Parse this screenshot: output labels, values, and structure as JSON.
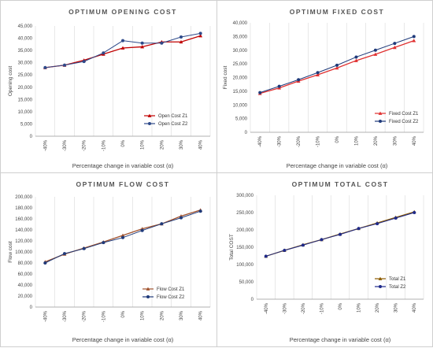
{
  "chart_data": [
    {
      "type": "line",
      "title": "OPTIMUM OPENING COST",
      "xlabel": "Percentage change in variable cost (α)",
      "ylabel": "Opening cost",
      "categories": [
        "-40%",
        "-30%",
        "-20%",
        "-10%",
        "0%",
        "10%",
        "20%",
        "30%",
        "40%"
      ],
      "ylim": [
        0,
        45000
      ],
      "yticks": [
        "0",
        "5,000",
        "10,000",
        "15,000",
        "20,000",
        "25,000",
        "30,000",
        "35,000",
        "40,000",
        "45,000"
      ],
      "grid": "vertical",
      "legend": "bottom-right",
      "series": [
        {
          "name": "Open Cost Z1",
          "color": "#c00000",
          "marker": "triangle",
          "values": [
            28000,
            29000,
            31000,
            33500,
            36000,
            36500,
            38500,
            38500,
            41000
          ]
        },
        {
          "name": "Open Cost Z2",
          "color": "#2e4a8a",
          "marker": "circle",
          "values": [
            28000,
            29000,
            30500,
            34000,
            39000,
            38000,
            38000,
            40500,
            42000
          ]
        }
      ]
    },
    {
      "type": "line",
      "title": "OPTIMUM FIXED COST",
      "xlabel": "Percentage change in variable cost (α)",
      "ylabel": "Fixed cost",
      "categories": [
        "-40%",
        "-30%",
        "-20%",
        "-10%",
        "0%",
        "10%",
        "20%",
        "30%",
        "40%"
      ],
      "ylim": [
        0,
        40000
      ],
      "yticks": [
        "0",
        "5,000",
        "10,000",
        "15,000",
        "20,000",
        "25,000",
        "30,000",
        "35,000",
        "40,000"
      ],
      "grid": "vertical",
      "legend": "bottom-right",
      "series": [
        {
          "name": "Fixed Cost Z1",
          "color": "#e03030",
          "marker": "triangle",
          "values": [
            14200,
            16200,
            18700,
            21000,
            23500,
            26200,
            28500,
            31000,
            33500
          ]
        },
        {
          "name": "Fixed Cost Z2",
          "color": "#1f3a7a",
          "marker": "circle",
          "values": [
            14500,
            16800,
            19200,
            21800,
            24500,
            27500,
            30000,
            32500,
            35000
          ]
        }
      ]
    },
    {
      "type": "line",
      "title": "OPTIMUM FLOW COST",
      "xlabel": "Percentage change in variable cost (α)",
      "ylabel": "Flow cost",
      "categories": [
        "-40%",
        "-30%",
        "-20%",
        "-10%",
        "0%",
        "10%",
        "20%",
        "30%",
        "40%"
      ],
      "ylim": [
        0,
        200000
      ],
      "yticks": [
        "0",
        "20,000",
        "40,000",
        "60,000",
        "80,000",
        "100,000",
        "120,000",
        "140,000",
        "160,000",
        "180,000",
        "200,000"
      ],
      "grid": "vertical",
      "legend": "bottom-right",
      "series": [
        {
          "name": "Flow Cost Z1",
          "color": "#a0522d",
          "marker": "triangle",
          "values": [
            82000,
            96000,
            107000,
            118000,
            130000,
            142000,
            151000,
            165000,
            176000
          ]
        },
        {
          "name": "Flow Cost Z2",
          "color": "#1f3a7a",
          "marker": "circle",
          "values": [
            80000,
            97000,
            106000,
            117000,
            126000,
            139000,
            151000,
            162000,
            174000
          ]
        }
      ]
    },
    {
      "type": "line",
      "title": "OPTIMUM TOTAL COST",
      "xlabel": "Percentage change in variable cost (α)",
      "ylabel": "Total COST",
      "categories": [
        "-40%",
        "-30%",
        "-20%",
        "-10%",
        "0%",
        "10%",
        "20%",
        "30%",
        "40%"
      ],
      "ylim": [
        0,
        300000
      ],
      "yticks": [
        "0",
        "50,000",
        "100,000",
        "150,000",
        "200,000",
        "250,000",
        "300,000"
      ],
      "grid": "vertical",
      "legend": "bottom-right",
      "series": [
        {
          "name": "Total Z1",
          "color": "#8b5a00",
          "marker": "triangle",
          "values": [
            124000,
            141000,
            157000,
            172000,
            188000,
            204000,
            220000,
            236000,
            252000
          ]
        },
        {
          "name": "Total Z2",
          "color": "#1f2a8a",
          "marker": "circle",
          "values": [
            124000,
            141000,
            156000,
            172000,
            187000,
            204000,
            218000,
            234000,
            250000
          ]
        }
      ]
    }
  ]
}
